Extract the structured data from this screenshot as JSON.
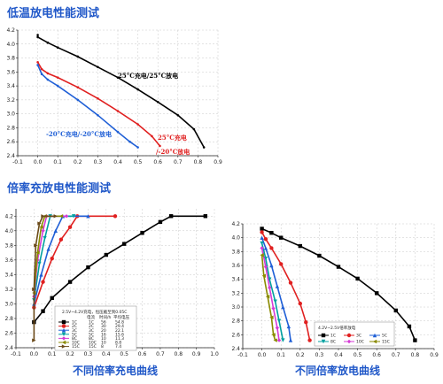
{
  "headings": {
    "top": "低温放电性能测试",
    "middle": "倍率充放电性能测试",
    "caption_left": "不同倍率充电曲线",
    "caption_right": "不同倍率放电曲线"
  },
  "chart_data": [
    {
      "type": "line",
      "title": "",
      "xlim": [
        -0.1,
        0.9
      ],
      "ylim": [
        2.4,
        4.2
      ],
      "xticks": [
        "-0.1",
        "0.0",
        "0.1",
        "0.2",
        "0.3",
        "0.4",
        "0.5",
        "0.6",
        "0.7",
        "0.8",
        "0.9"
      ],
      "yticks": [
        "2.4",
        "2.6",
        "2.8",
        "3.0",
        "3.2",
        "3.4",
        "3.6",
        "3.8",
        "4.0",
        "4.2"
      ],
      "grid": true,
      "annotations": [
        "25°C充电/25°C放电",
        "25°C充电",
        "/-20°C放电",
        "-20°C充电/-20°C放电"
      ],
      "annotation_colors": [
        "#000000",
        "#e02020",
        "#e02020",
        "#1f5fd6"
      ],
      "series": [
        {
          "color": "#000000",
          "points": [
            [
              0.0,
              4.13
            ],
            [
              0.0,
              4.1
            ],
            [
              0.05,
              4.02
            ],
            [
              0.1,
              3.95
            ],
            [
              0.2,
              3.82
            ],
            [
              0.3,
              3.67
            ],
            [
              0.4,
              3.52
            ],
            [
              0.5,
              3.35
            ],
            [
              0.6,
              3.17
            ],
            [
              0.7,
              2.98
            ],
            [
              0.78,
              2.78
            ],
            [
              0.83,
              2.52
            ]
          ]
        },
        {
          "color": "#e02020",
          "points": [
            [
              0.0,
              3.74
            ],
            [
              0.02,
              3.64
            ],
            [
              0.05,
              3.58
            ],
            [
              0.1,
              3.52
            ],
            [
              0.2,
              3.38
            ],
            [
              0.3,
              3.22
            ],
            [
              0.4,
              3.04
            ],
            [
              0.5,
              2.85
            ],
            [
              0.57,
              2.68
            ],
            [
              0.61,
              2.54
            ]
          ]
        },
        {
          "color": "#1f5fd6",
          "points": [
            [
              0.0,
              3.7
            ],
            [
              0.02,
              3.57
            ],
            [
              0.05,
              3.49
            ],
            [
              0.1,
              3.4
            ],
            [
              0.2,
              3.2
            ],
            [
              0.3,
              2.98
            ],
            [
              0.4,
              2.74
            ],
            [
              0.46,
              2.6
            ],
            [
              0.5,
              2.52
            ]
          ]
        }
      ]
    },
    {
      "type": "line",
      "title": "",
      "xlim": [
        -0.1,
        1.0
      ],
      "ylim": [
        2.4,
        4.3
      ],
      "xticks": [
        "-0.1",
        "0.0",
        "0.1",
        "0.2",
        "0.3",
        "0.4",
        "0.5",
        "0.6",
        "0.7",
        "0.8",
        "0.9",
        "1.0"
      ],
      "yticks": [
        "2.4",
        "2.6",
        "2.8",
        "3.0",
        "3.2",
        "3.4",
        "3.6",
        "3.8",
        "4.0",
        "4.2"
      ],
      "grid": true,
      "legend_title": "2.5V~4.2V充电，恒压截至到0.05C",
      "legend_table_header": [
        "电流",
        "时间/h",
        "平均电压"
      ],
      "legend_table_rows": [
        [
          "1C",
          "56",
          "54.8"
        ],
        [
          "2C",
          "30",
          "29.4"
        ],
        [
          "3C",
          "20",
          "22.1"
        ],
        [
          "5C",
          "16",
          "15.6"
        ],
        [
          "8C",
          "10",
          "11.3"
        ],
        [
          "10C",
          "10",
          "8.8"
        ],
        [
          "15C",
          "8",
          "7.4"
        ]
      ],
      "legend_position": "bottom-center",
      "series": [
        {
          "name": "1C",
          "color": "#000000",
          "marker": "square",
          "points": [
            [
              0.0,
              2.75
            ],
            [
              0.05,
              2.9
            ],
            [
              0.1,
              3.08
            ],
            [
              0.2,
              3.3
            ],
            [
              0.3,
              3.5
            ],
            [
              0.4,
              3.67
            ],
            [
              0.5,
              3.82
            ],
            [
              0.6,
              3.97
            ],
            [
              0.7,
              4.12
            ],
            [
              0.76,
              4.2
            ],
            [
              0.95,
              4.2
            ]
          ]
        },
        {
          "name": "2C",
          "color": "#e02020",
          "marker": "circle",
          "points": [
            [
              0.0,
              2.95
            ],
            [
              0.05,
              3.3
            ],
            [
              0.1,
              3.62
            ],
            [
              0.15,
              3.88
            ],
            [
              0.2,
              4.05
            ],
            [
              0.24,
              4.2
            ],
            [
              0.45,
              4.2
            ]
          ]
        },
        {
          "name": "3C",
          "color": "#1f5fd6",
          "marker": "triangle",
          "points": [
            [
              0.0,
              3.0
            ],
            [
              0.04,
              3.4
            ],
            [
              0.08,
              3.75
            ],
            [
              0.12,
              4.0
            ],
            [
              0.16,
              4.2
            ],
            [
              0.3,
              4.2
            ]
          ]
        },
        {
          "name": "5C",
          "color": "#00a0a0",
          "marker": "triangle-down",
          "points": [
            [
              0.0,
              3.05
            ],
            [
              0.03,
              3.55
            ],
            [
              0.06,
              3.9
            ],
            [
              0.09,
              4.2
            ],
            [
              0.22,
              4.2
            ]
          ]
        },
        {
          "name": "8C",
          "color": "#d63ad6",
          "marker": "diamond",
          "points": [
            [
              0.0,
              3.1
            ],
            [
              0.02,
              3.6
            ],
            [
              0.05,
              4.0
            ],
            [
              0.07,
              4.2
            ],
            [
              0.18,
              4.2
            ]
          ]
        },
        {
          "name": "10C",
          "color": "#8a8a00",
          "marker": "triangle-left",
          "points": [
            [
              0.0,
              3.15
            ],
            [
              0.02,
              3.7
            ],
            [
              0.04,
              4.05
            ],
            [
              0.06,
              4.2
            ],
            [
              0.15,
              4.2
            ]
          ]
        },
        {
          "name": "15C",
          "color": "#6b4a1a",
          "marker": "triangle-right",
          "points": [
            [
              0.0,
              2.5
            ],
            [
              0.0,
              3.2
            ],
            [
              0.01,
              3.8
            ],
            [
              0.03,
              4.1
            ],
            [
              0.05,
              4.2
            ],
            [
              0.12,
              4.2
            ]
          ]
        }
      ]
    },
    {
      "type": "line",
      "title": "",
      "xlim": [
        -0.1,
        0.9
      ],
      "ylim": [
        2.4,
        4.2
      ],
      "xticks": [
        "-0.1",
        "0.0",
        "0.1",
        "0.2",
        "0.3",
        "0.4",
        "0.5",
        "0.6",
        "0.7",
        "0.8",
        "0.9"
      ],
      "yticks": [
        "2.4",
        "2.6",
        "2.8",
        "3.0",
        "3.2",
        "3.4",
        "3.6",
        "3.8",
        "4.0",
        "4.2"
      ],
      "grid": true,
      "legend_title": "4.2V~2.5V倍率放电",
      "legend_position": "right",
      "series": [
        {
          "name": "1C",
          "color": "#000000",
          "marker": "square",
          "points": [
            [
              0.0,
              4.13
            ],
            [
              0.05,
              4.07
            ],
            [
              0.1,
              4.0
            ],
            [
              0.2,
              3.88
            ],
            [
              0.3,
              3.74
            ],
            [
              0.4,
              3.58
            ],
            [
              0.5,
              3.41
            ],
            [
              0.6,
              3.2
            ],
            [
              0.7,
              2.95
            ],
            [
              0.77,
              2.72
            ],
            [
              0.8,
              2.52
            ]
          ]
        },
        {
          "name": "3C",
          "color": "#e02020",
          "marker": "circle",
          "points": [
            [
              0.0,
              4.08
            ],
            [
              0.02,
              3.98
            ],
            [
              0.05,
              3.85
            ],
            [
              0.1,
              3.62
            ],
            [
              0.15,
              3.35
            ],
            [
              0.2,
              3.05
            ],
            [
              0.23,
              2.78
            ],
            [
              0.25,
              2.52
            ]
          ]
        },
        {
          "name": "5C",
          "color": "#1f5fd6",
          "marker": "triangle",
          "points": [
            [
              0.0,
              4.0
            ],
            [
              0.02,
              3.85
            ],
            [
              0.05,
              3.6
            ],
            [
              0.08,
              3.3
            ],
            [
              0.11,
              3.0
            ],
            [
              0.14,
              2.72
            ],
            [
              0.15,
              2.52
            ]
          ]
        },
        {
          "name": "8C",
          "color": "#00a0a0",
          "marker": "triangle-down",
          "points": [
            [
              0.0,
              3.92
            ],
            [
              0.02,
              3.7
            ],
            [
              0.04,
              3.4
            ],
            [
              0.07,
              3.08
            ],
            [
              0.09,
              2.8
            ],
            [
              0.11,
              2.52
            ]
          ]
        },
        {
          "name": "10C",
          "color": "#d63ad6",
          "marker": "diamond",
          "points": [
            [
              0.0,
              3.85
            ],
            [
              0.02,
              3.58
            ],
            [
              0.04,
              3.28
            ],
            [
              0.06,
              2.98
            ],
            [
              0.08,
              2.7
            ],
            [
              0.09,
              2.52
            ]
          ]
        },
        {
          "name": "15C",
          "color": "#8a8a00",
          "marker": "triangle-left",
          "points": [
            [
              0.0,
              3.75
            ],
            [
              0.01,
              3.45
            ],
            [
              0.03,
              3.15
            ],
            [
              0.05,
              2.85
            ],
            [
              0.06,
              2.6
            ],
            [
              0.07,
              2.52
            ]
          ]
        }
      ]
    }
  ]
}
